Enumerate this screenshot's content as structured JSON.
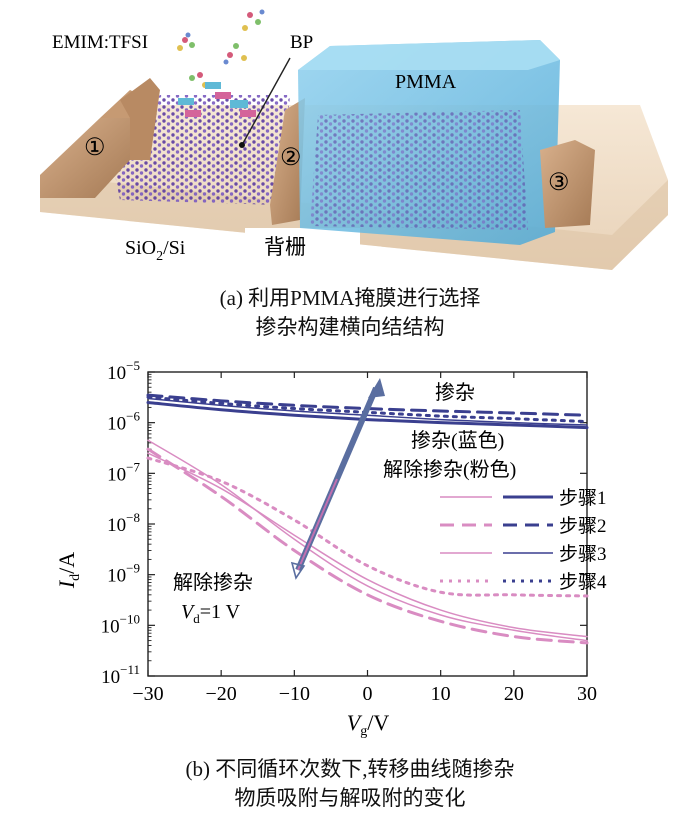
{
  "panel_a": {
    "labels": {
      "ionic_liquid": "EMIM:TFSI",
      "bp": "BP",
      "pmma": "PMMA",
      "electrode_1": "①",
      "electrode_2": "②",
      "electrode_3": "③",
      "substrate_main": "SiO",
      "substrate_sub": "2",
      "substrate_tail": "/Si",
      "back_gate": "背栅"
    },
    "caption_line1": "(a) 利用PMMA掩膜进行选择",
    "caption_line2": "掺杂构建横向结结构"
  },
  "panel_b": {
    "caption_line1": "(b) 不同循环次数下,转移曲线随掺杂",
    "caption_line2": "物质吸附与解吸附的变化",
    "annotations": {
      "doping": "掺杂",
      "doping_blue": "掺杂(蓝色)",
      "undoping_pink": "解除掺杂(粉色)",
      "undoping": "解除掺杂",
      "vd_main": "V",
      "vd_sub": "d",
      "vd_value": "=1 V"
    },
    "colors": {
      "blue": "#3a3f8f",
      "pink": "#d98cc2",
      "arrow": "#5a6ea0"
    }
  },
  "chart_data": {
    "type": "line",
    "title": "",
    "xlabel": "V_g/V",
    "ylabel": "I_d/A",
    "xlim": [
      -30,
      30
    ],
    "ylim_log10": [
      -11,
      -5
    ],
    "yscale": "log",
    "x_ticks": [
      "−30",
      "−20",
      "−10",
      "0",
      "10",
      "20",
      "30"
    ],
    "y_ticks": [
      {
        "base": "10",
        "exp": "−5"
      },
      {
        "base": "10",
        "exp": "−6"
      },
      {
        "base": "10",
        "exp": "−7"
      },
      {
        "base": "10",
        "exp": "−8"
      },
      {
        "base": "10",
        "exp": "−9"
      },
      {
        "base": "10",
        "exp": "−10"
      },
      {
        "base": "10",
        "exp": "−11"
      }
    ],
    "legend": [
      "步骤1",
      "步骤2",
      "步骤3",
      "步骤4"
    ],
    "x": [
      -30,
      -20,
      -10,
      0,
      10,
      20,
      30
    ],
    "series": [
      {
        "name": "步骤1",
        "group": "doped",
        "color": "#3a3f8f",
        "style": "solid",
        "width": 3,
        "values": [
          2.5e-06,
          1.8e-06,
          1.4e-06,
          1.15e-06,
          1e-06,
          9e-07,
          8e-07
        ]
      },
      {
        "name": "步骤2",
        "group": "doped",
        "color": "#3a3f8f",
        "style": "dash",
        "width": 3,
        "values": [
          3.5e-06,
          2.7e-06,
          2.2e-06,
          1.9e-06,
          1.7e-06,
          1.55e-06,
          1.4e-06
        ]
      },
      {
        "name": "步骤3",
        "group": "doped",
        "color": "#3a3f8f",
        "style": "solid",
        "width": 1.5,
        "values": [
          3e-06,
          2.2e-06,
          1.7e-06,
          1.4e-06,
          1.15e-06,
          1e-06,
          9e-07
        ]
      },
      {
        "name": "步骤4",
        "group": "doped",
        "color": "#3a3f8f",
        "style": "dot",
        "width": 3,
        "values": [
          3.2e-06,
          2.4e-06,
          1.9e-06,
          1.6e-06,
          1.35e-06,
          1.2e-06,
          1.05e-06
        ]
      },
      {
        "name": "步骤1",
        "group": "undoped",
        "color": "#d98cc2",
        "style": "solid",
        "width": 1.5,
        "values": [
          4.5e-07,
          6e-08,
          5e-09,
          6e-10,
          1.6e-10,
          8e-11,
          5e-11
        ]
      },
      {
        "name": "步骤2",
        "group": "undoped",
        "color": "#d98cc2",
        "style": "dash",
        "width": 3,
        "values": [
          3e-07,
          3.5e-08,
          3e-09,
          4e-10,
          1.2e-10,
          6e-11,
          4.5e-11
        ]
      },
      {
        "name": "步骤3",
        "group": "undoped",
        "color": "#d98cc2",
        "style": "solid",
        "width": 1.5,
        "values": [
          2.5e-07,
          5e-08,
          6e-09,
          8e-10,
          2e-10,
          9e-11,
          6e-11
        ]
      },
      {
        "name": "步骤4",
        "group": "undoped",
        "color": "#d98cc2",
        "style": "dot",
        "width": 3,
        "values": [
          2e-07,
          7e-08,
          1.2e-08,
          1.5e-09,
          4.5e-10,
          4e-10,
          3.8e-10
        ]
      }
    ]
  }
}
